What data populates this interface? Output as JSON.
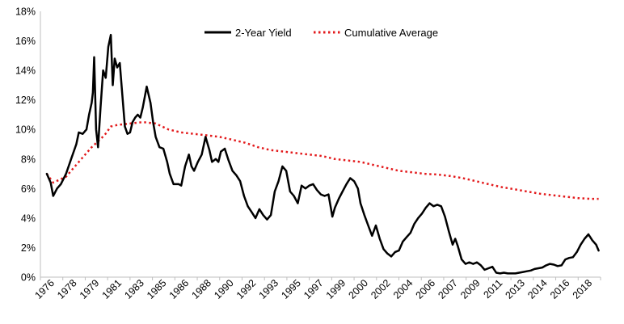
{
  "chart_data": {
    "type": "line",
    "title": "",
    "xlabel": "",
    "ylabel": "",
    "ylim": [
      0,
      18
    ],
    "yticks": [
      "0%",
      "2%",
      "4%",
      "6%",
      "8%",
      "10%",
      "12%",
      "14%",
      "16%",
      "18%"
    ],
    "xticks": [
      "1976",
      "1978",
      "1979",
      "1981",
      "1983",
      "1985",
      "1986",
      "1988",
      "1990",
      "1992",
      "1993",
      "1995",
      "1997",
      "1999",
      "2000",
      "2002",
      "2004",
      "2006",
      "2007",
      "2009",
      "2011",
      "2013",
      "2014",
      "2016",
      "2018"
    ],
    "legend_position": "top-center",
    "colors": {
      "yield": "#000000",
      "average": "#e31a1c",
      "axis": "#bfbfbf"
    },
    "series": [
      {
        "name": "2-Year Yield",
        "style": "solid",
        "points": [
          [
            1976.5,
            7.0
          ],
          [
            1976.8,
            6.4
          ],
          [
            1977.0,
            5.5
          ],
          [
            1977.3,
            6.0
          ],
          [
            1977.6,
            6.3
          ],
          [
            1978.0,
            7.0
          ],
          [
            1978.4,
            8.0
          ],
          [
            1978.8,
            9.0
          ],
          [
            1979.0,
            9.8
          ],
          [
            1979.3,
            9.7
          ],
          [
            1979.6,
            10.0
          ],
          [
            1979.8,
            11.0
          ],
          [
            1980.0,
            11.8
          ],
          [
            1980.1,
            12.5
          ],
          [
            1980.2,
            14.9
          ],
          [
            1980.35,
            10.0
          ],
          [
            1980.5,
            8.8
          ],
          [
            1980.7,
            11.5
          ],
          [
            1980.9,
            14.0
          ],
          [
            1981.1,
            13.5
          ],
          [
            1981.3,
            15.6
          ],
          [
            1981.5,
            16.4
          ],
          [
            1981.65,
            13.0
          ],
          [
            1981.8,
            14.8
          ],
          [
            1982.0,
            14.2
          ],
          [
            1982.2,
            14.5
          ],
          [
            1982.4,
            12.3
          ],
          [
            1982.6,
            10.2
          ],
          [
            1982.8,
            9.7
          ],
          [
            1983.0,
            9.8
          ],
          [
            1983.2,
            10.5
          ],
          [
            1983.4,
            10.8
          ],
          [
            1983.6,
            11.0
          ],
          [
            1983.8,
            10.8
          ],
          [
            1984.0,
            11.5
          ],
          [
            1984.3,
            12.9
          ],
          [
            1984.6,
            11.8
          ],
          [
            1984.8,
            10.5
          ],
          [
            1985.0,
            9.5
          ],
          [
            1985.3,
            8.8
          ],
          [
            1985.6,
            8.7
          ],
          [
            1985.9,
            7.8
          ],
          [
            1986.1,
            7.0
          ],
          [
            1986.4,
            6.3
          ],
          [
            1986.8,
            6.3
          ],
          [
            1987.0,
            6.2
          ],
          [
            1987.3,
            7.5
          ],
          [
            1987.6,
            8.3
          ],
          [
            1987.8,
            7.5
          ],
          [
            1988.0,
            7.2
          ],
          [
            1988.3,
            7.8
          ],
          [
            1988.6,
            8.3
          ],
          [
            1988.9,
            9.5
          ],
          [
            1989.2,
            8.6
          ],
          [
            1989.4,
            7.8
          ],
          [
            1989.7,
            8.0
          ],
          [
            1989.9,
            7.8
          ],
          [
            1990.1,
            8.5
          ],
          [
            1990.4,
            8.7
          ],
          [
            1990.7,
            7.9
          ],
          [
            1991.0,
            7.2
          ],
          [
            1991.3,
            6.9
          ],
          [
            1991.6,
            6.5
          ],
          [
            1991.9,
            5.5
          ],
          [
            1992.2,
            4.8
          ],
          [
            1992.5,
            4.4
          ],
          [
            1992.8,
            4.0
          ],
          [
            1993.1,
            4.6
          ],
          [
            1993.4,
            4.2
          ],
          [
            1993.7,
            3.9
          ],
          [
            1994.0,
            4.2
          ],
          [
            1994.3,
            5.8
          ],
          [
            1994.6,
            6.5
          ],
          [
            1994.9,
            7.5
          ],
          [
            1995.2,
            7.2
          ],
          [
            1995.5,
            5.8
          ],
          [
            1995.8,
            5.5
          ],
          [
            1996.1,
            5.0
          ],
          [
            1996.4,
            6.2
          ],
          [
            1996.7,
            6.0
          ],
          [
            1997.0,
            6.2
          ],
          [
            1997.3,
            6.3
          ],
          [
            1997.6,
            5.9
          ],
          [
            1997.9,
            5.6
          ],
          [
            1998.2,
            5.5
          ],
          [
            1998.5,
            5.6
          ],
          [
            1998.8,
            4.1
          ],
          [
            1999.0,
            4.7
          ],
          [
            1999.3,
            5.3
          ],
          [
            1999.6,
            5.8
          ],
          [
            1999.9,
            6.3
          ],
          [
            2000.2,
            6.7
          ],
          [
            2000.5,
            6.5
          ],
          [
            2000.8,
            6.0
          ],
          [
            2001.0,
            5.0
          ],
          [
            2001.3,
            4.2
          ],
          [
            2001.6,
            3.5
          ],
          [
            2001.9,
            2.8
          ],
          [
            2002.2,
            3.5
          ],
          [
            2002.5,
            2.6
          ],
          [
            2002.8,
            1.9
          ],
          [
            2003.1,
            1.6
          ],
          [
            2003.4,
            1.4
          ],
          [
            2003.7,
            1.7
          ],
          [
            2004.0,
            1.8
          ],
          [
            2004.3,
            2.4
          ],
          [
            2004.6,
            2.7
          ],
          [
            2004.9,
            3.0
          ],
          [
            2005.2,
            3.6
          ],
          [
            2005.5,
            4.0
          ],
          [
            2005.8,
            4.3
          ],
          [
            2006.1,
            4.7
          ],
          [
            2006.4,
            5.0
          ],
          [
            2006.7,
            4.8
          ],
          [
            2007.0,
            4.9
          ],
          [
            2007.3,
            4.8
          ],
          [
            2007.6,
            4.1
          ],
          [
            2007.9,
            3.1
          ],
          [
            2008.2,
            2.2
          ],
          [
            2008.4,
            2.6
          ],
          [
            2008.6,
            2.1
          ],
          [
            2008.9,
            1.2
          ],
          [
            2009.2,
            0.9
          ],
          [
            2009.5,
            1.0
          ],
          [
            2009.8,
            0.9
          ],
          [
            2010.1,
            1.0
          ],
          [
            2010.4,
            0.8
          ],
          [
            2010.7,
            0.5
          ],
          [
            2011.0,
            0.6
          ],
          [
            2011.3,
            0.7
          ],
          [
            2011.6,
            0.3
          ],
          [
            2011.9,
            0.25
          ],
          [
            2012.2,
            0.3
          ],
          [
            2012.5,
            0.25
          ],
          [
            2012.8,
            0.25
          ],
          [
            2013.1,
            0.25
          ],
          [
            2013.4,
            0.3
          ],
          [
            2013.7,
            0.35
          ],
          [
            2014.0,
            0.4
          ],
          [
            2014.3,
            0.45
          ],
          [
            2014.6,
            0.55
          ],
          [
            2014.9,
            0.6
          ],
          [
            2015.2,
            0.65
          ],
          [
            2015.5,
            0.8
          ],
          [
            2015.8,
            0.9
          ],
          [
            2016.1,
            0.85
          ],
          [
            2016.4,
            0.75
          ],
          [
            2016.7,
            0.8
          ],
          [
            2017.0,
            1.2
          ],
          [
            2017.3,
            1.3
          ],
          [
            2017.6,
            1.35
          ],
          [
            2017.9,
            1.7
          ],
          [
            2018.2,
            2.2
          ],
          [
            2018.5,
            2.6
          ],
          [
            2018.8,
            2.9
          ],
          [
            2019.1,
            2.5
          ],
          [
            2019.4,
            2.2
          ],
          [
            2019.6,
            1.8
          ]
        ]
      },
      {
        "name": "Cumulative Average",
        "style": "dotted",
        "points": [
          [
            1976.5,
            7.0
          ],
          [
            1977.0,
            6.4
          ],
          [
            1978.0,
            6.8
          ],
          [
            1979.0,
            7.8
          ],
          [
            1980.0,
            8.8
          ],
          [
            1981.0,
            9.6
          ],
          [
            1981.5,
            10.2
          ],
          [
            1982.0,
            10.3
          ],
          [
            1983.0,
            10.4
          ],
          [
            1984.0,
            10.5
          ],
          [
            1985.0,
            10.4
          ],
          [
            1986.0,
            10.0
          ],
          [
            1987.0,
            9.8
          ],
          [
            1988.0,
            9.7
          ],
          [
            1989.0,
            9.6
          ],
          [
            1990.0,
            9.5
          ],
          [
            1991.0,
            9.3
          ],
          [
            1992.0,
            9.1
          ],
          [
            1993.0,
            8.8
          ],
          [
            1994.0,
            8.6
          ],
          [
            1995.0,
            8.5
          ],
          [
            1996.0,
            8.4
          ],
          [
            1997.0,
            8.3
          ],
          [
            1998.0,
            8.2
          ],
          [
            1999.0,
            8.0
          ],
          [
            2000.0,
            7.9
          ],
          [
            2001.0,
            7.8
          ],
          [
            2002.0,
            7.6
          ],
          [
            2003.0,
            7.4
          ],
          [
            2004.0,
            7.2
          ],
          [
            2005.0,
            7.1
          ],
          [
            2006.0,
            7.0
          ],
          [
            2007.0,
            6.95
          ],
          [
            2008.0,
            6.85
          ],
          [
            2009.0,
            6.7
          ],
          [
            2010.0,
            6.5
          ],
          [
            2011.0,
            6.3
          ],
          [
            2012.0,
            6.1
          ],
          [
            2013.0,
            5.95
          ],
          [
            2014.0,
            5.8
          ],
          [
            2015.0,
            5.65
          ],
          [
            2016.0,
            5.55
          ],
          [
            2017.0,
            5.45
          ],
          [
            2018.0,
            5.35
          ],
          [
            2019.0,
            5.3
          ],
          [
            2019.6,
            5.3
          ]
        ]
      }
    ]
  }
}
